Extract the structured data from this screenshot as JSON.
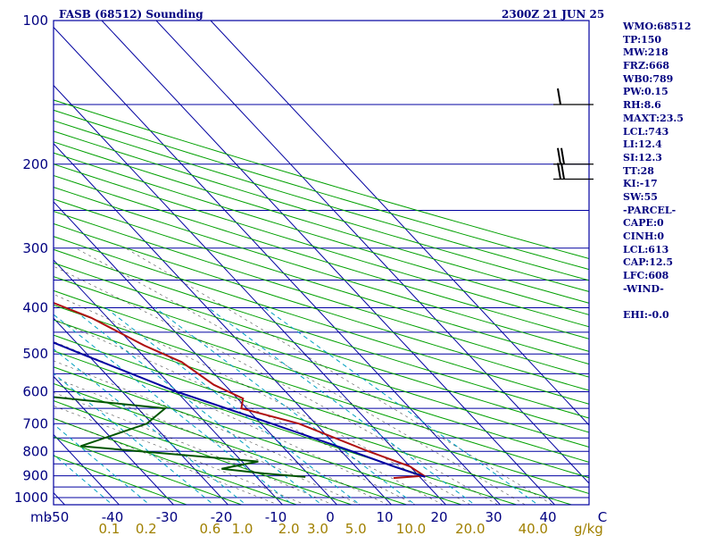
{
  "chart_data": {
    "type": "line",
    "title": "FASB (68512) Sounding",
    "valid_time": "2300Z 21 JUN 25",
    "pressure_unit_label": "mb",
    "mixing_ratio_unit_label": "g/kg",
    "pressure_ticks": [
      {
        "p": 100,
        "label": "100"
      },
      {
        "p": 200,
        "label": "200"
      },
      {
        "p": 300,
        "label": "300"
      },
      {
        "p": 400,
        "label": "400"
      },
      {
        "p": 500,
        "label": "500"
      },
      {
        "p": 600,
        "label": "600"
      },
      {
        "p": 700,
        "label": "700"
      },
      {
        "p": 800,
        "label": "800"
      },
      {
        "p": 900,
        "label": "900"
      },
      {
        "p": 1000,
        "label": "1000"
      }
    ],
    "isobars": [
      100,
      150,
      200,
      250,
      300,
      350,
      400,
      450,
      500,
      550,
      600,
      650,
      700,
      750,
      800,
      850,
      900,
      950,
      1000,
      1050
    ],
    "temperature_ticks": [
      {
        "t": -50,
        "label": "-50"
      },
      {
        "t": -40,
        "label": "-40"
      },
      {
        "t": -30,
        "label": "-30"
      },
      {
        "t": -20,
        "label": "-20"
      },
      {
        "t": -10,
        "label": "-10"
      },
      {
        "t": 0,
        "label": "0"
      },
      {
        "t": 10,
        "label": "10"
      },
      {
        "t": 20,
        "label": "20"
      },
      {
        "t": 30,
        "label": "30"
      },
      {
        "t": 40,
        "label": "40"
      },
      {
        "t": 50,
        "label": "C"
      }
    ],
    "mixing_ratio_ticks": [
      {
        "w": 0.1,
        "label": "0.1"
      },
      {
        "w": 0.2,
        "label": "0.2"
      },
      {
        "w": 0.6,
        "label": "0.6"
      },
      {
        "w": 1.0,
        "label": "1.0"
      },
      {
        "w": 2.0,
        "label": "2.0"
      },
      {
        "w": 3.0,
        "label": "3.0"
      },
      {
        "w": 5.0,
        "label": "5.0"
      },
      {
        "w": 10.0,
        "label": "10.0"
      },
      {
        "w": 20.0,
        "label": "20.0"
      },
      {
        "w": 40.0,
        "label": "40.0"
      }
    ],
    "series": [
      {
        "id": "temperature",
        "color": "#b01010",
        "points": [
          {
            "p": 100,
            "t": -55
          },
          {
            "p": 105,
            "t": -56
          },
          {
            "p": 115,
            "t": -59
          },
          {
            "p": 130,
            "t": -64
          },
          {
            "p": 150,
            "t": -66
          },
          {
            "p": 200,
            "t": -51
          },
          {
            "p": 250,
            "t": -42
          },
          {
            "p": 280,
            "t": -38
          },
          {
            "p": 350,
            "t": -24
          },
          {
            "p": 420,
            "t": -13
          },
          {
            "p": 480,
            "t": -8
          },
          {
            "p": 520,
            "t": -4
          },
          {
            "p": 580,
            "t": -2
          },
          {
            "p": 620,
            "t": 1
          },
          {
            "p": 650,
            "t": -1
          },
          {
            "p": 700,
            "t": 7
          },
          {
            "p": 800,
            "t": 15
          },
          {
            "p": 860,
            "t": 20
          },
          {
            "p": 900,
            "t": 21
          },
          {
            "p": 910,
            "t": 15
          }
        ]
      },
      {
        "id": "dewpoint",
        "color": "#005500",
        "points": [
          {
            "p": 100,
            "t": -83
          },
          {
            "p": 105,
            "t": -84
          },
          {
            "p": 130,
            "t": -88
          },
          {
            "p": 150,
            "t": -86
          },
          {
            "p": 200,
            "t": -76
          },
          {
            "p": 245,
            "t": -76
          },
          {
            "p": 265,
            "t": -60
          },
          {
            "p": 310,
            "t": -56
          },
          {
            "p": 370,
            "t": -66
          },
          {
            "p": 440,
            "t": -62
          },
          {
            "p": 560,
            "t": -52
          },
          {
            "p": 580,
            "t": -54
          },
          {
            "p": 650,
            "t": -15
          },
          {
            "p": 700,
            "t": -21
          },
          {
            "p": 780,
            "t": -37
          },
          {
            "p": 840,
            "t": -7
          },
          {
            "p": 870,
            "t": -15
          },
          {
            "p": 890,
            "t": -8
          },
          {
            "p": 905,
            "t": -1
          }
        ]
      },
      {
        "id": "parcel",
        "color": "#0000a0",
        "points": [
          {
            "p": 110,
            "t": -101
          },
          {
            "p": 150,
            "t": -87
          },
          {
            "p": 200,
            "t": -73
          },
          {
            "p": 250,
            "t": -61
          },
          {
            "p": 300,
            "t": -51
          },
          {
            "p": 350,
            "t": -42
          },
          {
            "p": 400,
            "t": -34
          },
          {
            "p": 500,
            "t": -21
          },
          {
            "p": 600,
            "t": -10
          },
          {
            "p": 700,
            "t": 2
          },
          {
            "p": 800,
            "t": 12
          },
          {
            "p": 860,
            "t": 17
          },
          {
            "p": 905,
            "t": 21
          }
        ]
      }
    ],
    "wind_barbs": [
      {
        "p": 150,
        "knots": 15
      },
      {
        "p": 200,
        "knots": 20
      },
      {
        "p": 215,
        "knots": 20
      }
    ]
  },
  "indices": [
    "WMO:68512",
    "TP:150",
    "MW:218",
    "FRZ:668",
    "WB0:789",
    "PW:0.15",
    "RH:8.6",
    "MAXT:23.5",
    "LCL:743",
    "LI:12.4",
    "SI:12.3",
    "TT:28",
    "KI:-17",
    "SW:55",
    "-PARCEL-",
    "CAPE:0",
    "CINH:0",
    "LCL:613",
    "CAP:12.5",
    "LFC:608",
    "-WIND-",
    "",
    "EHI:-0.0"
  ],
  "colors": {
    "isobar": "#0000a0",
    "isotherm": "#0000a0",
    "dry_adiabat": "#00a000",
    "moist_adiabat": "#000000",
    "mixing_ratio": "#00a0c0",
    "label_text": "#000080",
    "mixing_ratio_label": "#a08000"
  }
}
